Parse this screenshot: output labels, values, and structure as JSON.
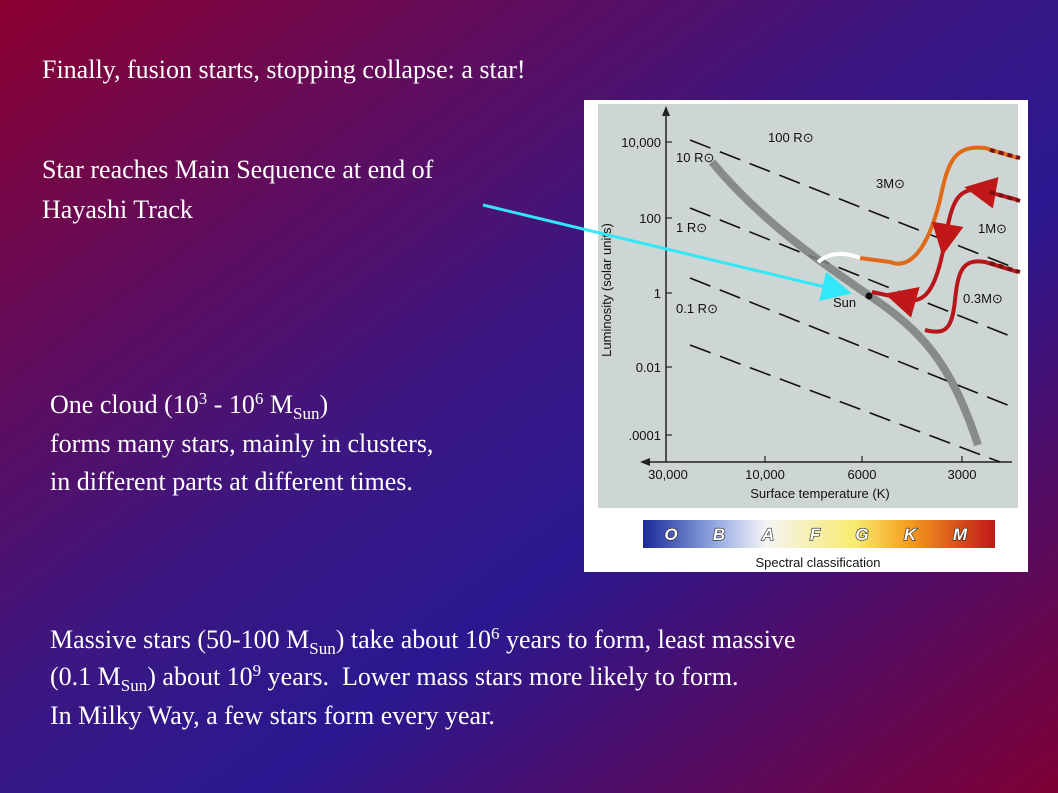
{
  "title": "Finally, fusion starts, stopping collapse: a star!",
  "arrow_note": [
    "Star reaches Main Sequence at end of",
    "Hayashi Track"
  ],
  "cloud_note": {
    "line1": [
      "One cloud (10",
      "3",
      " - 10",
      "6",
      " M",
      "Sun",
      ")"
    ],
    "line2": "forms many stars, mainly in clusters,",
    "line3": "in different parts at different times."
  },
  "formation_note": {
    "line1": [
      "Massive stars (50-100 M",
      "Sun",
      ") take about 10",
      "6",
      " years to form, least massive"
    ],
    "line2": [
      "(0.1 M",
      "Sun",
      ") about 10",
      "9",
      " years.  Lower mass stars more likely to form."
    ],
    "line3": "In Milky Way, a few stars form every year."
  },
  "diagram": {
    "y_axis_label": "Luminosity (solar units)",
    "x_axis_label": "Surface temperature (K)",
    "y_ticks": [
      "10,000",
      "100",
      "1",
      "0.01",
      ".0001"
    ],
    "x_ticks": [
      "30,000",
      "10,000",
      "6000",
      "3000"
    ],
    "radius_labels": [
      "100 R⊙",
      "10 R⊙",
      "1 R⊙",
      "0.1 R⊙"
    ],
    "mass_labels": [
      "3M⊙",
      "1M⊙",
      "0.3M⊙"
    ],
    "sun_label": "Sun",
    "spectral_classes": [
      "O",
      "B",
      "A",
      "F",
      "G",
      "K",
      "M"
    ],
    "spectral_label": "Spectral classification"
  }
}
